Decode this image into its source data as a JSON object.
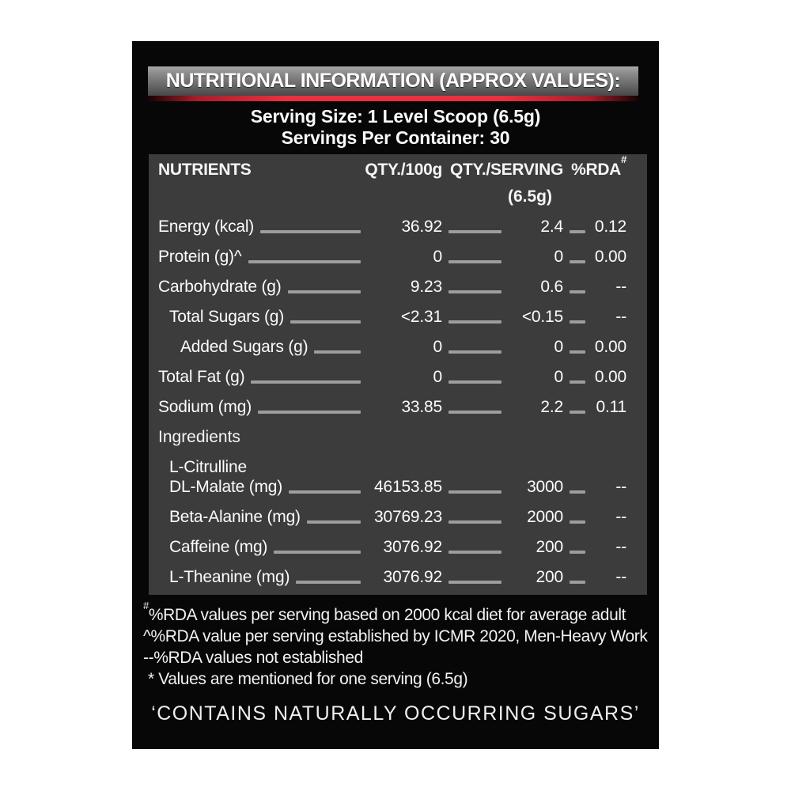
{
  "header": {
    "title": "NUTRITIONAL INFORMATION (APPROX VALUES):",
    "serving_size": "Serving Size: 1 Level Scoop (6.5g)",
    "servings_per_container": "Servings Per Container: 30"
  },
  "table": {
    "columns": {
      "nutrients": "NUTRIENTS",
      "qty_100g": "QTY./100g",
      "qty_serving": "QTY./SERVING",
      "qty_serving_sub": "(6.5g)",
      "rda": "%RDA",
      "rda_sup": "#"
    },
    "rows": [
      {
        "label": "Energy (kcal)",
        "indent": 0,
        "qty_100g": "36.92",
        "qty_serving": "2.4",
        "rda": "0.12"
      },
      {
        "label": "Protein (g)^",
        "indent": 0,
        "qty_100g": "0",
        "qty_serving": "0",
        "rda": "0.00"
      },
      {
        "label": "Carbohydrate (g)",
        "indent": 0,
        "qty_100g": "9.23",
        "qty_serving": "0.6",
        "rda": "--"
      },
      {
        "label": "Total Sugars (g)",
        "indent": 1,
        "qty_100g": "<2.31",
        "qty_serving": "<0.15",
        "rda": "--"
      },
      {
        "label": "Added Sugars (g)",
        "indent": 2,
        "qty_100g": "0",
        "qty_serving": "0",
        "rda": "0.00"
      },
      {
        "label": "Total Fat (g)",
        "indent": 0,
        "qty_100g": "0",
        "qty_serving": "0",
        "rda": "0.00"
      },
      {
        "label": "Sodium (mg)",
        "indent": 0,
        "qty_100g": "33.85",
        "qty_serving": "2.2",
        "rda": "0.11"
      }
    ],
    "section_label": "Ingredients",
    "ingredients": [
      {
        "label": [
          "L-Citrulline",
          "DL-Malate (mg)"
        ],
        "indent": 1,
        "qty_100g": "46153.85",
        "qty_serving": "3000",
        "rda": "--",
        "tall": true
      },
      {
        "label": "Beta-Alanine (mg)",
        "indent": 1,
        "qty_100g": "30769.23",
        "qty_serving": "2000",
        "rda": "--"
      },
      {
        "label": "Caffeine (mg)",
        "indent": 1,
        "qty_100g": "3076.92",
        "qty_serving": "200",
        "rda": "--"
      },
      {
        "label": "L-Theanine (mg)",
        "indent": 1,
        "qty_100g": "3076.92",
        "qty_serving": "200",
        "rda": "--"
      }
    ]
  },
  "footnotes": [
    {
      "marker": "#",
      "marker_sup": true,
      "indent": false,
      "text": "%RDA values per serving based on 2000 kcal diet for average adult"
    },
    {
      "marker": "^",
      "marker_sup": false,
      "indent": false,
      "text": "%RDA value per serving established by ICMR 2020, Men-Heavy Work"
    },
    {
      "marker": "--",
      "marker_sup": false,
      "indent": false,
      "text": "%RDA values not established"
    },
    {
      "marker": "* ",
      "marker_sup": false,
      "indent": true,
      "text": "Values are mentioned for one serving (6.5g)"
    }
  ],
  "bottom_note": "‘CONTAINS NATURALLY OCCURRING SUGARS’",
  "colors": {
    "label_background": "#070707",
    "table_background": "#3c3c3c",
    "leader_line": "#9d9d9d",
    "accent_red": "#e93140",
    "title_bar_gray": "#8d8d8d",
    "text": "#f5f5f5"
  }
}
